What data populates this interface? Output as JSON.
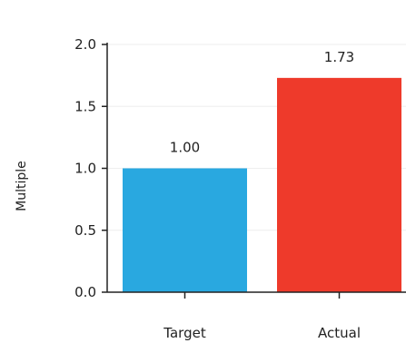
{
  "chart_data": {
    "type": "bar",
    "title": "",
    "xlabel": "",
    "ylabel": "Multiple",
    "categories": [
      "Target",
      "Actual"
    ],
    "values": [
      1.0,
      1.73
    ],
    "value_labels": [
      "1.00",
      "1.73"
    ],
    "colors": [
      "#29A8E0",
      "#EE3A2B"
    ],
    "ylim": [
      0,
      2.0
    ],
    "yticks": [
      0.0,
      0.5,
      1.0,
      1.5,
      2.0
    ],
    "ytick_labels": [
      "0.0",
      "0.5",
      "1.0",
      "1.5",
      "2.0"
    ],
    "grid": true,
    "legend": "none"
  }
}
